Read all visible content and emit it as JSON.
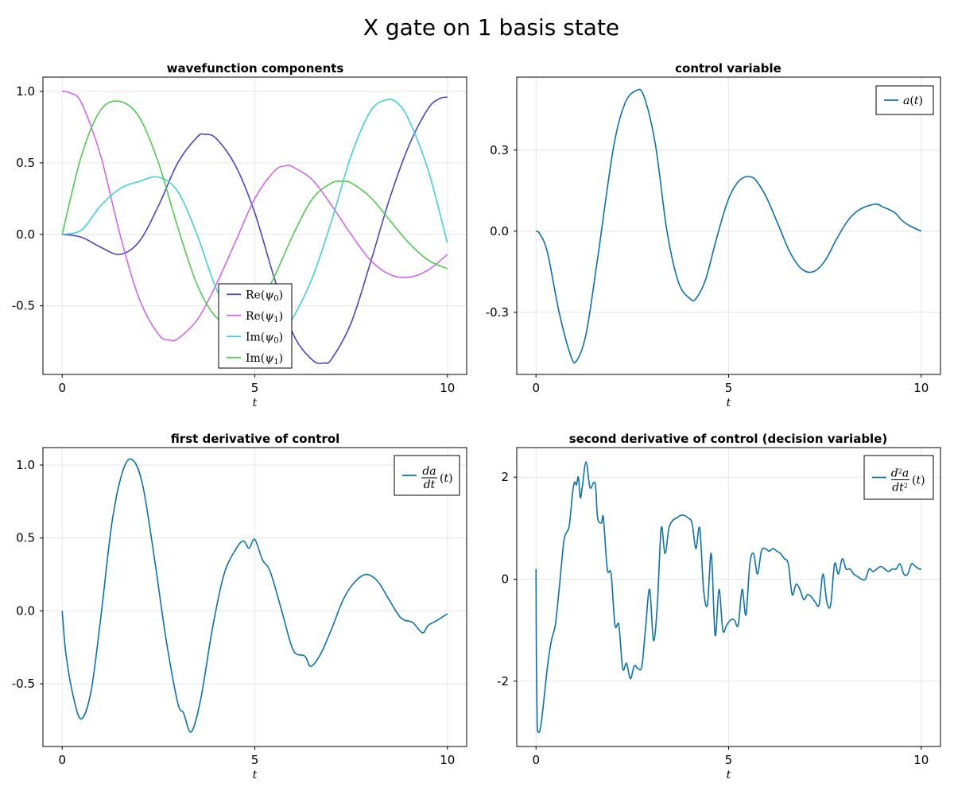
{
  "figure": {
    "title": "X gate on 1 basis state"
  },
  "chart_data": [
    {
      "type": "line",
      "title": "wavefunction components",
      "xlabel": "t",
      "ylabel": "",
      "xlim": [
        -0.5,
        10.5
      ],
      "ylim": [
        -0.98,
        1.1
      ],
      "xticks": [
        0,
        5,
        10
      ],
      "xtick_labels": [
        "0",
        "5",
        "10"
      ],
      "yticks": [
        -0.5,
        0.0,
        0.5,
        1.0
      ],
      "ytick_labels": [
        "-0.5",
        "0.0",
        "0.5",
        "1.0"
      ],
      "grid": true,
      "legend_position": "bottom-center",
      "series": [
        {
          "name": "Re(ψ₀)",
          "color": "#4a45c8",
          "x": [
            0,
            0.5,
            1.0,
            1.5,
            2.0,
            2.5,
            3.0,
            3.5,
            3.7,
            4.0,
            4.5,
            5.0,
            5.5,
            6.0,
            6.5,
            6.8,
            7.0,
            7.5,
            8.0,
            8.5,
            9.0,
            9.5,
            9.8,
            10.0
          ],
          "y": [
            0.0,
            -0.02,
            -0.09,
            -0.14,
            -0.05,
            0.2,
            0.5,
            0.68,
            0.7,
            0.67,
            0.48,
            0.15,
            -0.3,
            -0.7,
            -0.88,
            -0.9,
            -0.87,
            -0.62,
            -0.2,
            0.25,
            0.62,
            0.88,
            0.95,
            0.96
          ]
        },
        {
          "name": "Re(ψ₁)",
          "color": "#d166f0",
          "x": [
            0,
            0.2,
            0.5,
            1.0,
            1.5,
            2.0,
            2.5,
            2.8,
            3.0,
            3.5,
            4.0,
            4.5,
            5.0,
            5.5,
            5.8,
            6.0,
            6.5,
            7.0,
            7.5,
            8.0,
            8.5,
            9.0,
            9.5,
            10.0
          ],
          "y": [
            1.0,
            0.99,
            0.92,
            0.55,
            0.0,
            -0.45,
            -0.7,
            -0.74,
            -0.73,
            -0.6,
            -0.35,
            -0.05,
            0.25,
            0.44,
            0.48,
            0.47,
            0.38,
            0.2,
            0.0,
            -0.18,
            -0.28,
            -0.3,
            -0.25,
            -0.14
          ]
        },
        {
          "name": "Im(ψ₀)",
          "color": "#3fd1d6",
          "x": [
            0,
            0.5,
            1.0,
            1.5,
            2.0,
            2.5,
            3.0,
            3.5,
            4.0,
            4.5,
            5.0,
            5.5,
            5.8,
            6.0,
            6.5,
            7.0,
            7.5,
            8.0,
            8.4,
            8.7,
            9.0,
            9.5,
            10.0
          ],
          "y": [
            0.0,
            0.03,
            0.2,
            0.32,
            0.37,
            0.4,
            0.3,
            0.0,
            -0.38,
            -0.6,
            -0.67,
            -0.67,
            -0.64,
            -0.58,
            -0.3,
            0.1,
            0.55,
            0.86,
            0.94,
            0.92,
            0.8,
            0.45,
            -0.06
          ]
        },
        {
          "name": "Im(ψ₁)",
          "color": "#4fcc4f",
          "x": [
            0,
            0.5,
            1.0,
            1.5,
            2.0,
            2.5,
            3.0,
            3.5,
            4.0,
            4.5,
            5.0,
            5.5,
            6.0,
            6.5,
            7.0,
            7.3,
            7.5,
            8.0,
            8.5,
            9.0,
            9.5,
            10.0
          ],
          "y": [
            0.0,
            0.55,
            0.87,
            0.93,
            0.82,
            0.5,
            0.05,
            -0.35,
            -0.58,
            -0.62,
            -0.55,
            -0.3,
            0.0,
            0.25,
            0.36,
            0.37,
            0.36,
            0.26,
            0.1,
            -0.06,
            -0.18,
            -0.24
          ]
        }
      ]
    },
    {
      "type": "line",
      "title": "control variable",
      "xlabel": "t",
      "ylabel": "",
      "xlim": [
        -0.5,
        10.5
      ],
      "ylim": [
        -0.53,
        0.57
      ],
      "xticks": [
        0,
        5,
        10
      ],
      "xtick_labels": [
        "0",
        "5",
        "10"
      ],
      "yticks": [
        -0.3,
        0.0,
        0.3
      ],
      "ytick_labels": [
        "-0.3",
        "0.0",
        "0.3"
      ],
      "grid": true,
      "legend_position": "top-right",
      "series": [
        {
          "name": "a(t)",
          "color": "#0a72b0",
          "x": [
            0,
            0.1,
            0.3,
            0.6,
            0.9,
            1.05,
            1.3,
            1.6,
            2.0,
            2.3,
            2.6,
            2.8,
            3.1,
            3.4,
            3.7,
            4.0,
            4.15,
            4.4,
            4.7,
            5.0,
            5.3,
            5.6,
            5.8,
            6.0,
            6.3,
            6.6,
            6.9,
            7.2,
            7.5,
            7.8,
            8.1,
            8.4,
            8.8,
            9.0,
            9.3,
            9.5,
            9.7,
            10.0
          ],
          "y": [
            0.0,
            -0.01,
            -0.08,
            -0.3,
            -0.46,
            -0.48,
            -0.38,
            -0.1,
            0.3,
            0.47,
            0.52,
            0.5,
            0.32,
            0.0,
            -0.19,
            -0.25,
            -0.25,
            -0.18,
            -0.02,
            0.12,
            0.19,
            0.2,
            0.17,
            0.12,
            0.02,
            -0.08,
            -0.14,
            -0.15,
            -0.11,
            -0.03,
            0.04,
            0.08,
            0.1,
            0.09,
            0.07,
            0.04,
            0.02,
            0.0
          ]
        }
      ]
    },
    {
      "type": "line",
      "title": "first derivative of control",
      "xlabel": "t",
      "ylabel": "",
      "xlim": [
        -0.5,
        10.5
      ],
      "ylim": [
        -0.93,
        1.12
      ],
      "xticks": [
        0,
        5,
        10
      ],
      "xtick_labels": [
        "0",
        "5",
        "10"
      ],
      "yticks": [
        -0.5,
        0.0,
        0.5,
        1.0
      ],
      "ytick_labels": [
        "-0.5",
        "0.0",
        "0.5",
        "1.0"
      ],
      "grid": true,
      "legend_position": "top-right",
      "series": [
        {
          "name": "da/dt(t)",
          "color": "#0a72b0",
          "x": [
            0,
            0.1,
            0.3,
            0.5,
            0.75,
            1.0,
            1.3,
            1.6,
            1.85,
            2.1,
            2.4,
            2.7,
            3.0,
            3.15,
            3.35,
            3.6,
            3.9,
            4.2,
            4.5,
            4.7,
            4.85,
            5.0,
            5.2,
            5.4,
            5.7,
            6.0,
            6.3,
            6.45,
            6.7,
            7.0,
            7.3,
            7.6,
            7.9,
            8.2,
            8.5,
            8.8,
            9.1,
            9.35,
            9.5,
            9.7,
            10.0
          ],
          "y": [
            0.0,
            -0.3,
            -0.6,
            -0.74,
            -0.55,
            -0.05,
            0.62,
            0.98,
            1.03,
            0.85,
            0.35,
            -0.2,
            -0.63,
            -0.7,
            -0.83,
            -0.6,
            -0.12,
            0.25,
            0.42,
            0.48,
            0.43,
            0.49,
            0.35,
            0.27,
            0.0,
            -0.27,
            -0.31,
            -0.38,
            -0.3,
            -0.12,
            0.08,
            0.2,
            0.25,
            0.2,
            0.07,
            -0.05,
            -0.08,
            -0.15,
            -0.1,
            -0.07,
            -0.02
          ]
        }
      ]
    },
    {
      "type": "line",
      "title": "second derivative of control (decision variable)",
      "xlabel": "t",
      "ylabel": "",
      "xlim": [
        -0.5,
        10.5
      ],
      "ylim": [
        -3.28,
        2.58
      ],
      "xticks": [
        0,
        5,
        10
      ],
      "xtick_labels": [
        "0",
        "5",
        "10"
      ],
      "yticks": [
        -2,
        0,
        2
      ],
      "ytick_labels": [
        "-2",
        "0",
        "2"
      ],
      "grid": true,
      "legend_position": "top-right",
      "series": [
        {
          "name": "d²a/dt²(t)",
          "color": "#0a72b0",
          "x": [
            0,
            0.01,
            0.03,
            0.06,
            0.12,
            0.2,
            0.3,
            0.4,
            0.5,
            0.6,
            0.7,
            0.75,
            0.85,
            0.9,
            0.95,
            1.0,
            1.05,
            1.1,
            1.15,
            1.2,
            1.3,
            1.4,
            1.5,
            1.55,
            1.6,
            1.7,
            1.75,
            1.85,
            1.95,
            2.05,
            2.15,
            2.25,
            2.35,
            2.45,
            2.55,
            2.65,
            2.75,
            2.85,
            2.95,
            3.05,
            3.15,
            3.25,
            3.35,
            3.45,
            3.55,
            3.65,
            3.75,
            3.85,
            3.95,
            4.05,
            4.15,
            4.25,
            4.35,
            4.45,
            4.55,
            4.65,
            4.75,
            4.85,
            4.95,
            5.05,
            5.15,
            5.25,
            5.35,
            5.45,
            5.55,
            5.65,
            5.75,
            5.85,
            5.95,
            6.05,
            6.15,
            6.25,
            6.35,
            6.45,
            6.55,
            6.65,
            6.75,
            6.85,
            6.95,
            7.05,
            7.15,
            7.25,
            7.35,
            7.45,
            7.55,
            7.65,
            7.75,
            7.85,
            7.95,
            8.05,
            8.15,
            8.25,
            8.35,
            8.45,
            8.55,
            8.65,
            8.75,
            8.85,
            8.95,
            9.05,
            9.15,
            9.25,
            9.35,
            9.45,
            9.55,
            9.65,
            9.75,
            9.85,
            9.95,
            10.0
          ],
          "y": [
            0.2,
            -1.5,
            -2.8,
            -3.0,
            -2.9,
            -2.4,
            -1.7,
            -1.2,
            -0.9,
            -0.2,
            0.6,
            0.85,
            1.0,
            1.3,
            1.7,
            1.9,
            1.85,
            2.0,
            1.6,
            1.8,
            2.3,
            1.8,
            1.9,
            1.8,
            1.2,
            1.1,
            1.2,
            0.2,
            0.1,
            -0.9,
            -0.9,
            -1.75,
            -1.65,
            -1.95,
            -1.7,
            -1.75,
            -1.7,
            -0.9,
            -0.2,
            -1.2,
            -0.5,
            1.0,
            0.5,
            1.0,
            1.15,
            1.2,
            1.25,
            1.25,
            1.2,
            1.1,
            0.6,
            1.0,
            -0.2,
            -0.5,
            0.5,
            -1.1,
            -0.2,
            -1.0,
            -0.9,
            -0.8,
            -0.8,
            -0.9,
            -0.2,
            -0.7,
            0.3,
            0.5,
            0.1,
            0.55,
            0.6,
            0.55,
            0.6,
            0.55,
            0.5,
            0.4,
            0.3,
            -0.3,
            -0.1,
            -0.2,
            -0.4,
            -0.3,
            -0.35,
            -0.45,
            -0.5,
            0.1,
            -0.45,
            -0.5,
            0.3,
            0.1,
            0.4,
            0.2,
            0.2,
            0.1,
            0.05,
            0.0,
            0.0,
            0.2,
            0.15,
            0.2,
            0.25,
            0.2,
            0.15,
            0.2,
            0.2,
            0.3,
            0.1,
            0.1,
            0.3,
            0.25,
            0.2,
            0.2
          ]
        }
      ]
    }
  ]
}
